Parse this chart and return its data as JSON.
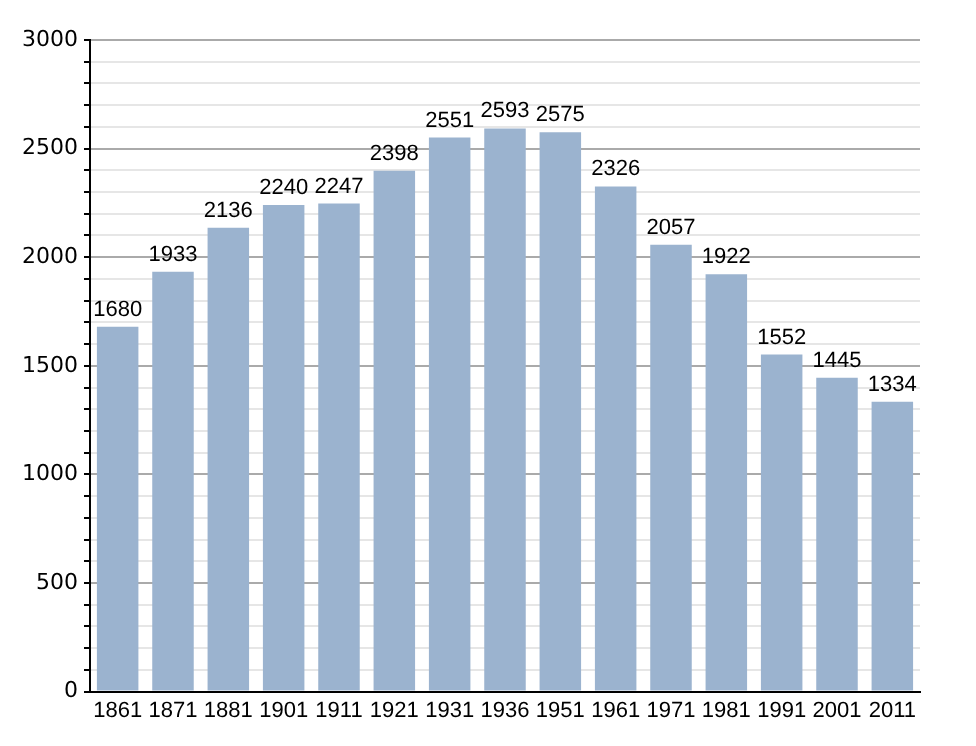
{
  "chart_data": {
    "type": "bar",
    "categories": [
      "1861",
      "1871",
      "1881",
      "1901",
      "1911",
      "1921",
      "1931",
      "1936",
      "1951",
      "1961",
      "1971",
      "1981",
      "1991",
      "2001",
      "2011"
    ],
    "values": [
      1680,
      1933,
      2136,
      2240,
      2247,
      2398,
      2551,
      2593,
      2575,
      2326,
      2057,
      1922,
      1552,
      1445,
      1334
    ],
    "color": "#9bb3cf",
    "ylim": [
      0,
      3000
    ],
    "yticks": [
      0,
      {
        "value": 100,
        "label": null
      },
      {
        "value": 200,
        "label": null
      },
      {
        "value": 300,
        "label": null
      },
      {
        "value": 400,
        "label": null
      },
      500,
      {
        "value": 600,
        "label": null
      },
      {
        "value": 700,
        "label": null
      },
      {
        "value": 800,
        "label": null
      },
      {
        "value": 900,
        "label": null
      },
      1000,
      {
        "value": 1100,
        "label": null
      },
      {
        "value": 1200,
        "label": null
      },
      {
        "value": 1300,
        "label": null
      },
      {
        "value": 1400,
        "label": null
      },
      1500,
      {
        "value": 1600,
        "label": null
      },
      {
        "value": 1700,
        "label": null
      },
      {
        "value": 1800,
        "label": null
      },
      {
        "value": 1900,
        "label": null
      },
      2000,
      {
        "value": 2100,
        "label": null
      },
      {
        "value": 2200,
        "label": null
      },
      {
        "value": 2300,
        "label": null
      },
      {
        "value": 2400,
        "label": null
      },
      2500,
      {
        "value": 2600,
        "label": null
      },
      {
        "value": 2700,
        "label": null
      },
      {
        "value": 2800,
        "label": null
      },
      {
        "value": 2900,
        "label": null
      },
      3000
    ],
    "grid": "y",
    "data_labels": true
  }
}
